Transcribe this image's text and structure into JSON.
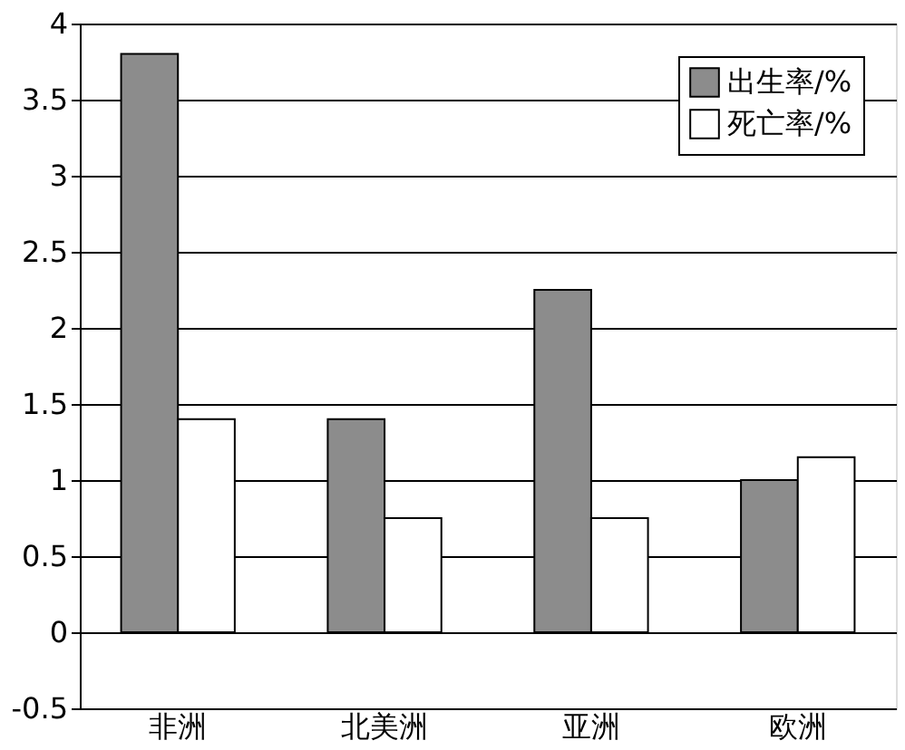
{
  "chart_data": {
    "type": "bar",
    "categories": [
      "非洲",
      "北美洲",
      "亚洲",
      "欧洲"
    ],
    "series": [
      {
        "name": "出生率/%",
        "color": "#8c8c8c",
        "values": [
          3.8,
          1.4,
          2.25,
          1.0
        ]
      },
      {
        "name": "死亡率/%",
        "color": "#ffffff",
        "values": [
          1.4,
          0.75,
          0.75,
          1.15
        ]
      }
    ],
    "ylim": [
      -0.5,
      4
    ],
    "yticks": [
      -0.5,
      0,
      0.5,
      1,
      1.5,
      2,
      2.5,
      3,
      3.5,
      4
    ],
    "grid": "y",
    "legend": "top right"
  }
}
